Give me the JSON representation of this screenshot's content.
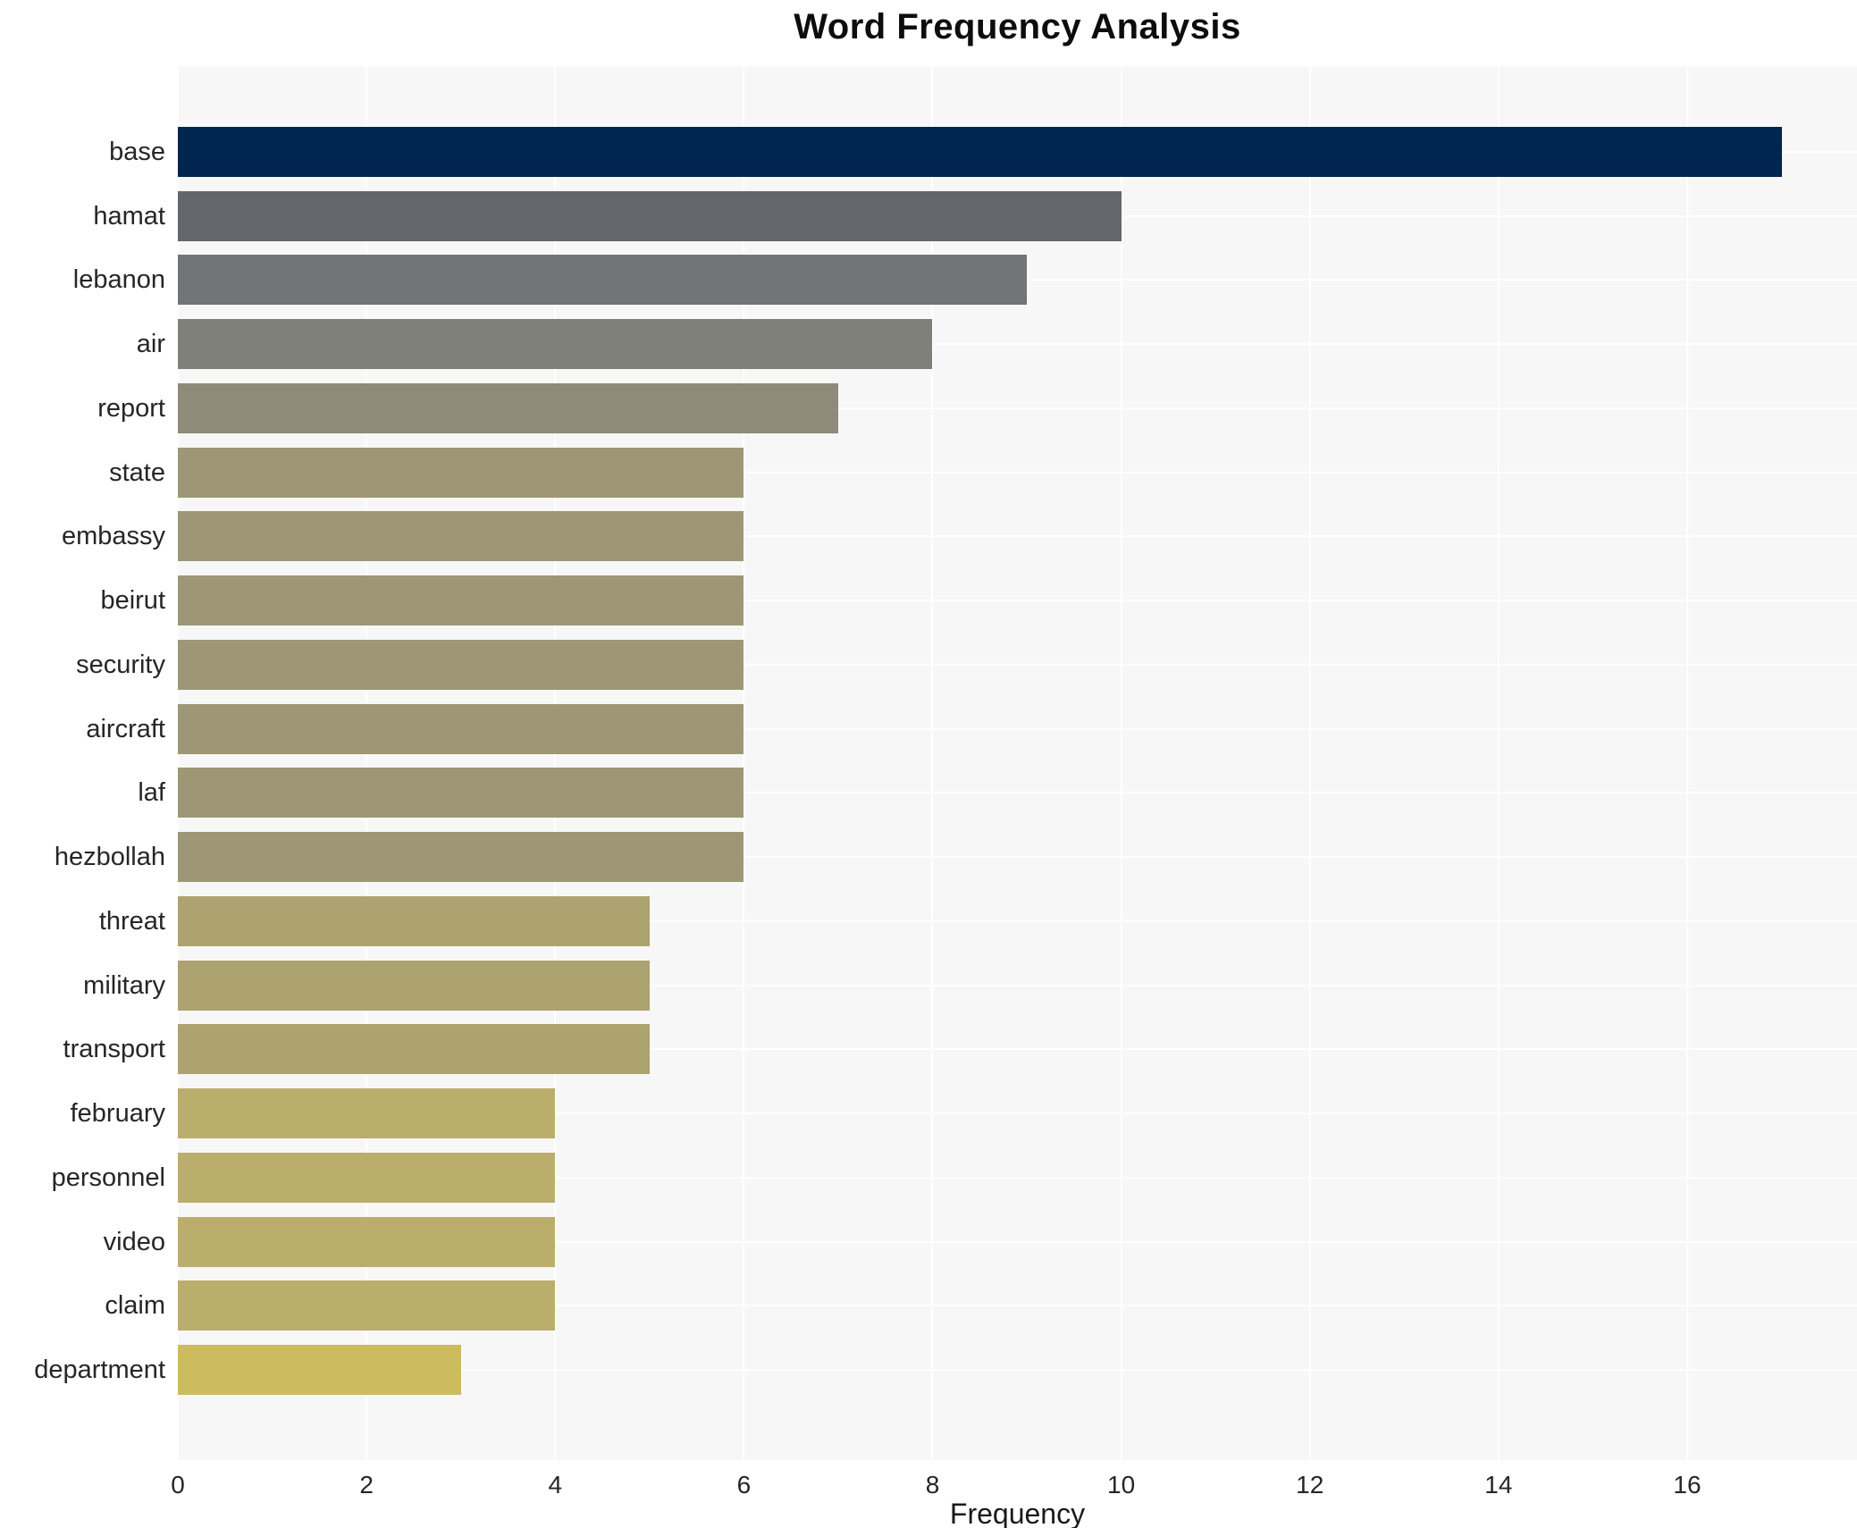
{
  "chart_data": {
    "type": "bar",
    "orientation": "horizontal",
    "title": "Word Frequency Analysis",
    "xlabel": "Frequency",
    "ylabel": "",
    "categories": [
      "base",
      "hamat",
      "lebanon",
      "air",
      "report",
      "state",
      "embassy",
      "beirut",
      "security",
      "aircraft",
      "laf",
      "hezbollah",
      "threat",
      "military",
      "transport",
      "february",
      "personnel",
      "video",
      "claim",
      "department"
    ],
    "values": [
      17,
      10,
      9,
      8,
      7,
      6,
      6,
      6,
      6,
      6,
      6,
      6,
      5,
      5,
      5,
      4,
      4,
      4,
      4,
      3
    ],
    "bar_colors": [
      "#00254e",
      "#65656c",
      "#737476",
      "#80807b",
      "#8f8a79",
      "#9d9775",
      "#9d9775",
      "#9d9775",
      "#9d9775",
      "#9d9775",
      "#9d9775",
      "#9d9775",
      "#aca371",
      "#aca371",
      "#aca371",
      "#bbad6b",
      "#bbad6b",
      "#bbad6b",
      "#bbad6b",
      "#ccbc5f"
    ],
    "xticks": [
      "0",
      "2",
      "4",
      "6",
      "8",
      "10",
      "12",
      "14",
      "16"
    ],
    "xtick_values": [
      0,
      2,
      4,
      6,
      8,
      10,
      12,
      14,
      16
    ],
    "xlim": [
      0,
      17.8
    ],
    "grid": true,
    "legend": false,
    "plot_bg_color": "#f7f7f8",
    "grid_color": "#ffffff",
    "title_color": "#0d0d0d",
    "tick_label_color": "#262626"
  }
}
